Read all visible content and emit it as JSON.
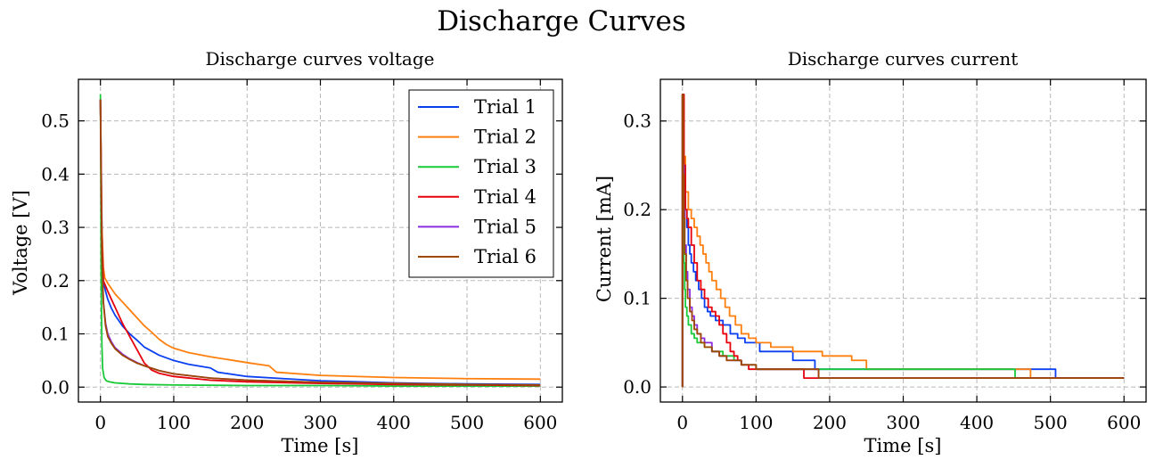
{
  "figure_title": "Discharge Curves",
  "chart_data": [
    {
      "type": "line",
      "title": "Discharge curves voltage",
      "xlabel": "Time [s]",
      "ylabel": "Voltage [V]",
      "xlim": [
        -30,
        630
      ],
      "ylim": [
        -0.028,
        0.578
      ],
      "xticks": [
        0,
        100,
        200,
        300,
        400,
        500,
        600
      ],
      "yticks": [
        0.0,
        0.1,
        0.2,
        0.3,
        0.4,
        0.5
      ],
      "grid": true,
      "legend": "top-right",
      "series": [
        {
          "name": "Trial 1",
          "color": "#0b3ff2",
          "x": [
            0,
            1,
            2,
            4,
            7,
            10,
            15,
            20,
            30,
            40,
            50,
            60,
            80,
            100,
            120,
            150,
            160,
            200,
            250,
            300,
            350,
            400,
            450,
            500,
            600
          ],
          "y": [
            0.54,
            0.42,
            0.3,
            0.2,
            0.18,
            0.165,
            0.148,
            0.135,
            0.115,
            0.1,
            0.088,
            0.075,
            0.06,
            0.05,
            0.043,
            0.036,
            0.028,
            0.02,
            0.016,
            0.012,
            0.01,
            0.008,
            0.007,
            0.006,
            0.005
          ]
        },
        {
          "name": "Trial 2",
          "color": "#ff7f0e",
          "x": [
            0,
            1,
            2,
            4,
            6,
            8,
            10,
            15,
            20,
            30,
            40,
            50,
            60,
            70,
            80,
            90,
            100,
            120,
            150,
            200,
            230,
            240,
            300,
            400,
            500,
            600
          ],
          "y": [
            0.54,
            0.42,
            0.3,
            0.225,
            0.205,
            0.2,
            0.195,
            0.185,
            0.175,
            0.16,
            0.145,
            0.13,
            0.115,
            0.103,
            0.09,
            0.08,
            0.073,
            0.065,
            0.057,
            0.046,
            0.04,
            0.028,
            0.022,
            0.018,
            0.016,
            0.015
          ]
        },
        {
          "name": "Trial 3",
          "color": "#1ac938",
          "x": [
            0,
            0.5,
            1,
            2,
            3,
            5,
            8,
            12,
            20,
            40,
            60,
            100,
            200,
            300,
            400,
            500,
            600
          ],
          "y": [
            0.55,
            0.4,
            0.2,
            0.08,
            0.035,
            0.018,
            0.012,
            0.01,
            0.008,
            0.006,
            0.005,
            0.004,
            0.003,
            0.003,
            0.002,
            0.002,
            0.002
          ]
        },
        {
          "name": "Trial 4",
          "color": "#e8000b",
          "x": [
            0,
            1,
            2,
            4,
            7,
            10,
            15,
            20,
            25,
            30,
            40,
            50,
            60,
            70,
            80,
            100,
            150,
            200,
            300,
            400,
            500,
            600
          ],
          "y": [
            0.54,
            0.4,
            0.28,
            0.2,
            0.19,
            0.18,
            0.165,
            0.15,
            0.135,
            0.12,
            0.095,
            0.07,
            0.045,
            0.032,
            0.026,
            0.02,
            0.013,
            0.01,
            0.007,
            0.005,
            0.004,
            0.003
          ]
        },
        {
          "name": "Trial 5",
          "color": "#8b2be2",
          "x": [
            0,
            1,
            2,
            4,
            7,
            10,
            15,
            20,
            30,
            40,
            50,
            60,
            80,
            100,
            150,
            200,
            300,
            400,
            500,
            600
          ],
          "y": [
            0.54,
            0.38,
            0.25,
            0.16,
            0.12,
            0.1,
            0.085,
            0.074,
            0.062,
            0.053,
            0.046,
            0.04,
            0.031,
            0.025,
            0.017,
            0.013,
            0.009,
            0.007,
            0.005,
            0.004
          ]
        },
        {
          "name": "Trial 6",
          "color": "#9f4800",
          "x": [
            0,
            1,
            2,
            4,
            7,
            10,
            15,
            20,
            30,
            40,
            50,
            60,
            80,
            100,
            150,
            200,
            300,
            400,
            500,
            600
          ],
          "y": [
            0.54,
            0.38,
            0.25,
            0.16,
            0.115,
            0.095,
            0.082,
            0.072,
            0.06,
            0.052,
            0.045,
            0.04,
            0.031,
            0.025,
            0.017,
            0.013,
            0.009,
            0.007,
            0.005,
            0.004
          ]
        }
      ]
    },
    {
      "type": "line",
      "title": "Discharge curves current",
      "xlabel": "Time [s]",
      "ylabel": "Current [mA]",
      "xlim": [
        -30,
        630
      ],
      "ylim": [
        -0.017,
        0.347
      ],
      "xticks": [
        0,
        100,
        200,
        300,
        400,
        500,
        600
      ],
      "yticks": [
        0.0,
        0.1,
        0.2,
        0.3
      ],
      "grid": true,
      "series": [
        {
          "name": "Trial 1",
          "color": "#0b3ff2",
          "x": [
            0,
            0,
            2,
            4,
            6,
            8,
            10,
            12,
            15,
            18,
            22,
            26,
            30,
            34,
            38,
            45,
            55,
            65,
            75,
            85,
            105,
            150,
            180,
            300,
            450,
            505,
            507,
            600
          ],
          "y": [
            0.0,
            0.33,
            0.25,
            0.2,
            0.18,
            0.16,
            0.15,
            0.14,
            0.13,
            0.12,
            0.11,
            0.1,
            0.09,
            0.085,
            0.08,
            0.075,
            0.07,
            0.06,
            0.055,
            0.05,
            0.04,
            0.03,
            0.02,
            0.02,
            0.02,
            0.02,
            0.01,
            0.01
          ]
        },
        {
          "name": "Trial 2",
          "color": "#ff7f0e",
          "x": [
            0,
            0,
            2,
            4,
            8,
            12,
            16,
            20,
            24,
            28,
            32,
            36,
            40,
            46,
            52,
            58,
            64,
            72,
            80,
            90,
            100,
            120,
            150,
            190,
            230,
            250,
            300,
            400,
            470,
            473,
            600
          ],
          "y": [
            0.0,
            0.33,
            0.26,
            0.22,
            0.2,
            0.19,
            0.18,
            0.17,
            0.16,
            0.15,
            0.14,
            0.13,
            0.12,
            0.11,
            0.1,
            0.09,
            0.08,
            0.07,
            0.06,
            0.055,
            0.05,
            0.045,
            0.04,
            0.035,
            0.03,
            0.02,
            0.02,
            0.02,
            0.02,
            0.01,
            0.01
          ]
        },
        {
          "name": "Trial 3",
          "color": "#1ac938",
          "x": [
            0,
            0,
            1,
            2,
            3,
            4,
            6,
            8,
            12,
            16,
            20,
            30,
            40,
            55,
            70,
            80,
            100,
            200,
            300,
            450,
            452,
            600
          ],
          "y": [
            0.0,
            0.33,
            0.2,
            0.14,
            0.11,
            0.09,
            0.08,
            0.07,
            0.06,
            0.055,
            0.05,
            0.045,
            0.04,
            0.035,
            0.03,
            0.025,
            0.02,
            0.02,
            0.02,
            0.02,
            0.01,
            0.01
          ]
        },
        {
          "name": "Trial 4",
          "color": "#e8000b",
          "x": [
            0,
            0,
            2,
            4,
            6,
            8,
            12,
            16,
            20,
            25,
            30,
            35,
            40,
            45,
            50,
            55,
            60,
            65,
            70,
            75,
            80,
            90,
            100,
            130,
            160,
            165,
            600
          ],
          "y": [
            0.0,
            0.33,
            0.25,
            0.2,
            0.19,
            0.18,
            0.16,
            0.14,
            0.12,
            0.11,
            0.1,
            0.09,
            0.085,
            0.08,
            0.07,
            0.06,
            0.05,
            0.04,
            0.035,
            0.03,
            0.025,
            0.02,
            0.02,
            0.02,
            0.02,
            0.01,
            0.01
          ]
        },
        {
          "name": "Trial 5",
          "color": "#8b2be2",
          "x": [
            0,
            0,
            1,
            2,
            3,
            5,
            7,
            10,
            13,
            16,
            20,
            25,
            30,
            40,
            50,
            60,
            80,
            100,
            140,
            180,
            185,
            600
          ],
          "y": [
            0.0,
            0.33,
            0.25,
            0.2,
            0.16,
            0.13,
            0.11,
            0.09,
            0.08,
            0.07,
            0.06,
            0.055,
            0.05,
            0.04,
            0.035,
            0.03,
            0.025,
            0.02,
            0.02,
            0.02,
            0.01,
            0.01
          ]
        },
        {
          "name": "Trial 6",
          "color": "#9f4800",
          "x": [
            0,
            0,
            1,
            2,
            3,
            5,
            7,
            10,
            13,
            16,
            20,
            25,
            30,
            40,
            50,
            60,
            80,
            100,
            140,
            180,
            185,
            600
          ],
          "y": [
            0.0,
            0.33,
            0.24,
            0.19,
            0.15,
            0.12,
            0.1,
            0.085,
            0.075,
            0.065,
            0.06,
            0.05,
            0.045,
            0.04,
            0.035,
            0.03,
            0.025,
            0.02,
            0.02,
            0.02,
            0.01,
            0.01
          ]
        }
      ]
    }
  ]
}
